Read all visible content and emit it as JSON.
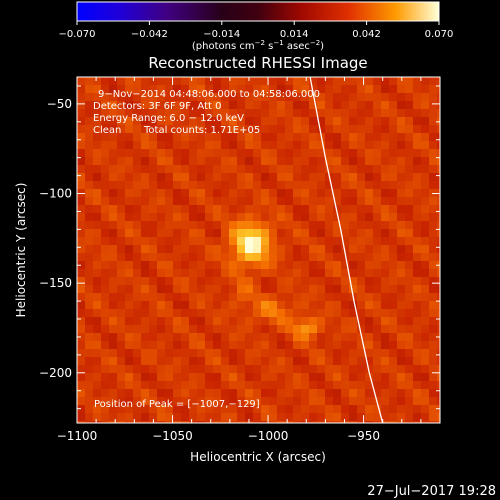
{
  "colorbar": {
    "ticks": [
      "−0.070",
      "−0.042",
      "−0.014",
      "0.014",
      "0.042",
      "0.070"
    ],
    "units_main": "(photons cm",
    "units_exp1": "−2",
    "units_mid": " s",
    "units_exp2": "−1",
    "units_mid2": " asec",
    "units_exp3": "−2",
    "units_end": ")"
  },
  "chart_data": {
    "type": "heatmap",
    "title": "Reconstructed RHESSI Image",
    "xlabel": "Heliocentric X (arcsec)",
    "ylabel": "Heliocentric Y (arcsec)",
    "xlim": [
      -1100,
      -910
    ],
    "ylim": [
      -228,
      -35
    ],
    "xticks": [
      -1100,
      -1050,
      -1000,
      -950
    ],
    "xtick_labels": [
      "−1100",
      "−1050",
      "−1000",
      "−950"
    ],
    "yticks": [
      -50,
      -100,
      -150,
      -200
    ],
    "ytick_labels": [
      "−50",
      "−100",
      "−150",
      "−200"
    ],
    "colorbar_range": [
      -0.07,
      0.07
    ],
    "sources": [
      {
        "x": -1009,
        "y": -128,
        "sigma_x": 7,
        "sigma_y": 8,
        "peak": 0.07
      },
      {
        "x": -1014,
        "y": -155,
        "sigma_x": 4,
        "sigma_y": 6,
        "peak": 0.03
      },
      {
        "x": -998,
        "y": -165,
        "sigma_x": 8,
        "sigma_y": 5,
        "peak": 0.036
      },
      {
        "x": -980,
        "y": -175,
        "sigma_x": 5,
        "sigma_y": 4,
        "peak": 0.046
      }
    ],
    "background_level": 0.02,
    "limb_curve": [
      [
        -978,
        -35
      ],
      [
        -970,
        -80
      ],
      [
        -962,
        -120
      ],
      [
        -955,
        -160
      ],
      [
        -947,
        -200
      ],
      [
        -940,
        -228
      ]
    ],
    "annotations": {
      "time_range": "9−Nov−2014 04:48:06.000 to 04:58:06.000",
      "detectors": "Detectors: 3F 6F 9F, Att 0",
      "energy": "Energy Range: 6.0 − 12.0 keV",
      "clean": "Clean",
      "total_counts": "Total counts: 1.71E+05",
      "peak_position": "Position of Peak = [−1007,−129]"
    }
  },
  "footer": {
    "timestamp": "27−Jul−2017 19:28"
  }
}
